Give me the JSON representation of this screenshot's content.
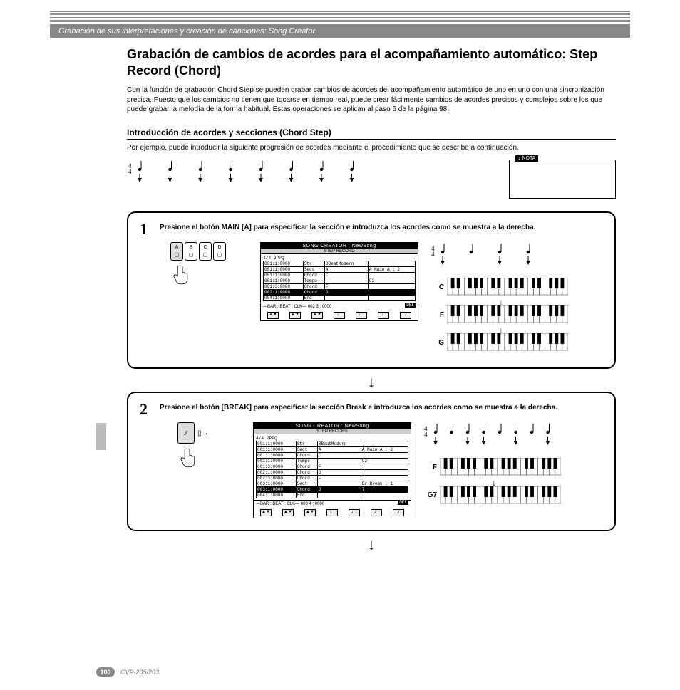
{
  "header": {
    "breadcrumb": "Grabación de sus interpretaciones y creación de canciones: Song Creator"
  },
  "title": "Grabación de cambios de acordes para el acompañamiento automático: Step Record (Chord)",
  "intro": "Con la función de grabación Chord Step se pueden grabar cambios de acordes del acompañamiento automático de uno en uno con una sincronización precisa. Puesto que los cambios no tienen que tocarse en tiempo real, puede crear fácilmente cambios de acordes precisos y complejos sobre los que puede grabar la melodía de la forma habitual. Estas operaciones se aplican al paso 6 de la página 98.",
  "section_title": "Introducción de acordes y secciones (Chord Step)",
  "section_text": "Por ejemplo, puede introducir la siguiente progresión de acordes mediante el procedimiento que se describe a continuación.",
  "nota": {
    "label": "NOTA"
  },
  "timesig": {
    "num": "4",
    "den": "4"
  },
  "rhythm_top": {
    "beats": 8,
    "arrows": [
      0,
      1,
      2,
      3,
      4,
      5,
      6,
      7
    ]
  },
  "step1": {
    "num": "1",
    "text": "Presione el botón MAIN [A] para especificar la sección e introduzca los acordes como se muestra a la derecha.",
    "buttons": [
      "A",
      "B",
      "C",
      "D"
    ],
    "pressed": 0,
    "lcd": {
      "title": "SONG CREATOR : NewSong",
      "sub": "STEP RECORD",
      "meta": "4/4   2PPQ",
      "rows": [
        [
          "001:1:0000",
          "Str",
          "8BeatModern",
          ""
        ],
        [
          "001:1:0000",
          "Sect",
          "A",
          "A  Main A  : 2"
        ],
        [
          "001:1:0000",
          "Chord",
          "C",
          ""
        ],
        [
          "001:1:0000",
          "Tempo",
          "",
          "92"
        ],
        [
          "001:3:0000",
          "Chord",
          "F",
          ""
        ],
        [
          "002:1:0000",
          "Chord",
          "G",
          ""
        ],
        [
          "004:1:0000",
          "End",
          "",
          ""
        ]
      ],
      "hl_row": 5,
      "foot": "—BAR : BEAT : CLK—  002   3   : 0000",
      "del": "DEL"
    },
    "chords": [
      "C",
      "F",
      "G"
    ],
    "mini_rhythm": {
      "beats": 4,
      "arrows": [
        0,
        2,
        3
      ]
    }
  },
  "step2": {
    "num": "2",
    "text": "Presione el botón [BREAK] para especificar la sección Break e introduzca los acordes como se muestra a la derecha.",
    "break_label": "⁄⁄",
    "lcd": {
      "title": "SONG CREATOR : NewSong",
      "sub": "STEP RECORD",
      "meta": "4/4   2PPQ",
      "rows": [
        [
          "001:1:0000",
          "Str",
          "8BeatModern",
          ""
        ],
        [
          "001:1:0000",
          "Sect",
          "A",
          "A  Main A  : 2"
        ],
        [
          "001:1:0000",
          "Chord",
          "C",
          ""
        ],
        [
          "001:1:0000",
          "Tempo",
          "",
          "92"
        ],
        [
          "001:3:0000",
          "Chord",
          "F",
          ""
        ],
        [
          "002:1:0000",
          "Chord",
          "G",
          ""
        ],
        [
          "002:3:0000",
          "Chord",
          "F",
          ""
        ],
        [
          "003:1:0000",
          "Sect",
          "",
          "Br  Break  : 1"
        ],
        [
          "003:1:0000",
          "Chord",
          "G",
          "7"
        ],
        [
          "004:1:0000",
          "End",
          "",
          ""
        ]
      ],
      "hl_row": 8,
      "foot": "—BAR : BEAT : CLK—  003   4   : 0000",
      "del": "DEL"
    },
    "chords": [
      "F",
      "G7"
    ],
    "mini_rhythm": {
      "beats": 8,
      "arrows": [
        0,
        2,
        3,
        5,
        7
      ]
    }
  },
  "footer": {
    "page": "100",
    "model": "CVP-205/203"
  },
  "colors": {
    "gray": "#888888",
    "bg": "#ffffff",
    "black": "#000000"
  }
}
